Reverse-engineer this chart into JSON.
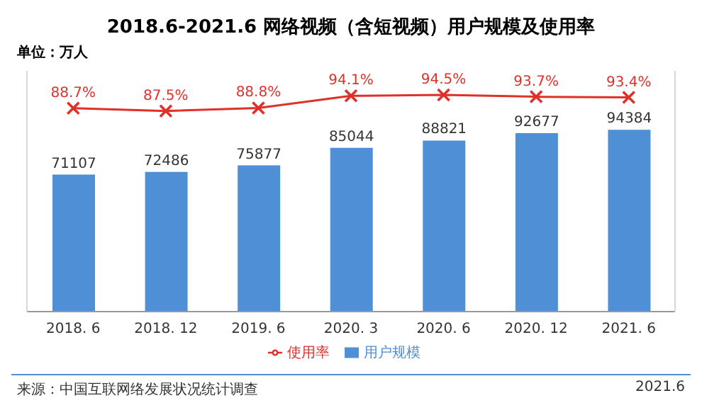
{
  "chart_data": {
    "type": "bar",
    "title": "2018.6-2021.6 网络视频（含短视频）用户规模及使用率",
    "categories": [
      "2018. 6",
      "2018. 12",
      "2019. 6",
      "2020. 3",
      "2020. 6",
      "2020. 12",
      "2021. 6"
    ],
    "series": [
      {
        "name": "用户规模",
        "type": "bar",
        "color": "#4f8fd6",
        "values": [
          71107,
          72486,
          75877,
          85044,
          88821,
          92677,
          94384
        ],
        "value_labels": [
          "71107",
          "72486",
          "75877",
          "85044",
          "88821",
          "92677",
          "94384"
        ]
      },
      {
        "name": "使用率",
        "type": "line",
        "axis": "y2",
        "color": "#e0302a",
        "marker": "cross",
        "values": [
          88.7,
          87.5,
          88.8,
          94.1,
          94.5,
          93.7,
          93.4
        ],
        "value_labels": [
          "88.7%",
          "87.5%",
          "88.8%",
          "94.1%",
          "94.5%",
          "93.7%",
          "93.4%"
        ]
      }
    ],
    "ylim": [
      0,
      125000
    ],
    "y2lim": [
      0,
      105
    ],
    "legend": "bottom",
    "tick_labels": "x",
    "annotations": [
      "单位：万人",
      "来源：中国互联网络发展状况统计调查",
      "2021.6"
    ]
  }
}
